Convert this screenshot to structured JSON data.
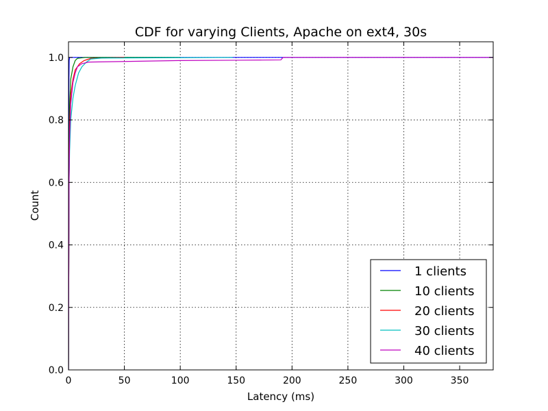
{
  "chart_data": {
    "type": "line",
    "title": "CDF for varying Clients, Apache on ext4, 30s",
    "xlabel": "Latency (ms)",
    "ylabel": "Count",
    "xlim": [
      0,
      380
    ],
    "ylim": [
      0,
      1.05
    ],
    "x_ticks": [
      0,
      50,
      100,
      150,
      200,
      250,
      300,
      350
    ],
    "y_ticks": [
      0.0,
      0.2,
      0.4,
      0.6,
      0.8,
      1.0
    ],
    "x_tick_labels": [
      "0",
      "50",
      "100",
      "150",
      "200",
      "250",
      "300",
      "350"
    ],
    "y_tick_labels": [
      "0.0",
      "0.2",
      "0.4",
      "0.6",
      "0.8",
      "1.0"
    ],
    "grid": true,
    "legend_position": "bottom-right",
    "series": [
      {
        "name": "1 clients",
        "color": "#0000ff",
        "points": [
          [
            0,
            0.0
          ],
          [
            0.3,
            0.9
          ],
          [
            0.6,
            0.99
          ],
          [
            1,
            1.0
          ],
          [
            380,
            1.0
          ]
        ]
      },
      {
        "name": "10 clients",
        "color": "#008000",
        "points": [
          [
            0,
            0.0
          ],
          [
            0.5,
            0.6
          ],
          [
            1,
            0.85
          ],
          [
            2,
            0.93
          ],
          [
            4,
            0.97
          ],
          [
            6,
            0.99
          ],
          [
            8,
            0.997
          ],
          [
            15,
            1.0
          ],
          [
            100,
            1.0
          ]
        ]
      },
      {
        "name": "20 clients",
        "color": "#ff0000",
        "points": [
          [
            0,
            0.0
          ],
          [
            0.5,
            0.6
          ],
          [
            1,
            0.78
          ],
          [
            2,
            0.88
          ],
          [
            4,
            0.93
          ],
          [
            6,
            0.96
          ],
          [
            10,
            0.98
          ],
          [
            14,
            0.99
          ],
          [
            20,
            0.997
          ],
          [
            50,
            1.0
          ]
        ]
      },
      {
        "name": "30 clients",
        "color": "#00bfbf",
        "points": [
          [
            0,
            0.0
          ],
          [
            0.5,
            0.6
          ],
          [
            1,
            0.7
          ],
          [
            2,
            0.8
          ],
          [
            4,
            0.87
          ],
          [
            6,
            0.91
          ],
          [
            9,
            0.95
          ],
          [
            12,
            0.97
          ],
          [
            16,
            0.985
          ],
          [
            20,
            0.995
          ],
          [
            30,
            0.998
          ],
          [
            147,
            1.0
          ]
        ]
      },
      {
        "name": "40 clients",
        "color": "#bf00bf",
        "points": [
          [
            0,
            0.0
          ],
          [
            0.5,
            0.6
          ],
          [
            1,
            0.75
          ],
          [
            2,
            0.85
          ],
          [
            4,
            0.92
          ],
          [
            6,
            0.95
          ],
          [
            8,
            0.97
          ],
          [
            12,
            0.98
          ],
          [
            18,
            0.985
          ],
          [
            50,
            0.987
          ],
          [
            100,
            0.99
          ],
          [
            150,
            0.991
          ],
          [
            190,
            0.992
          ],
          [
            192,
            1.0
          ],
          [
            380,
            1.0
          ]
        ]
      }
    ]
  }
}
